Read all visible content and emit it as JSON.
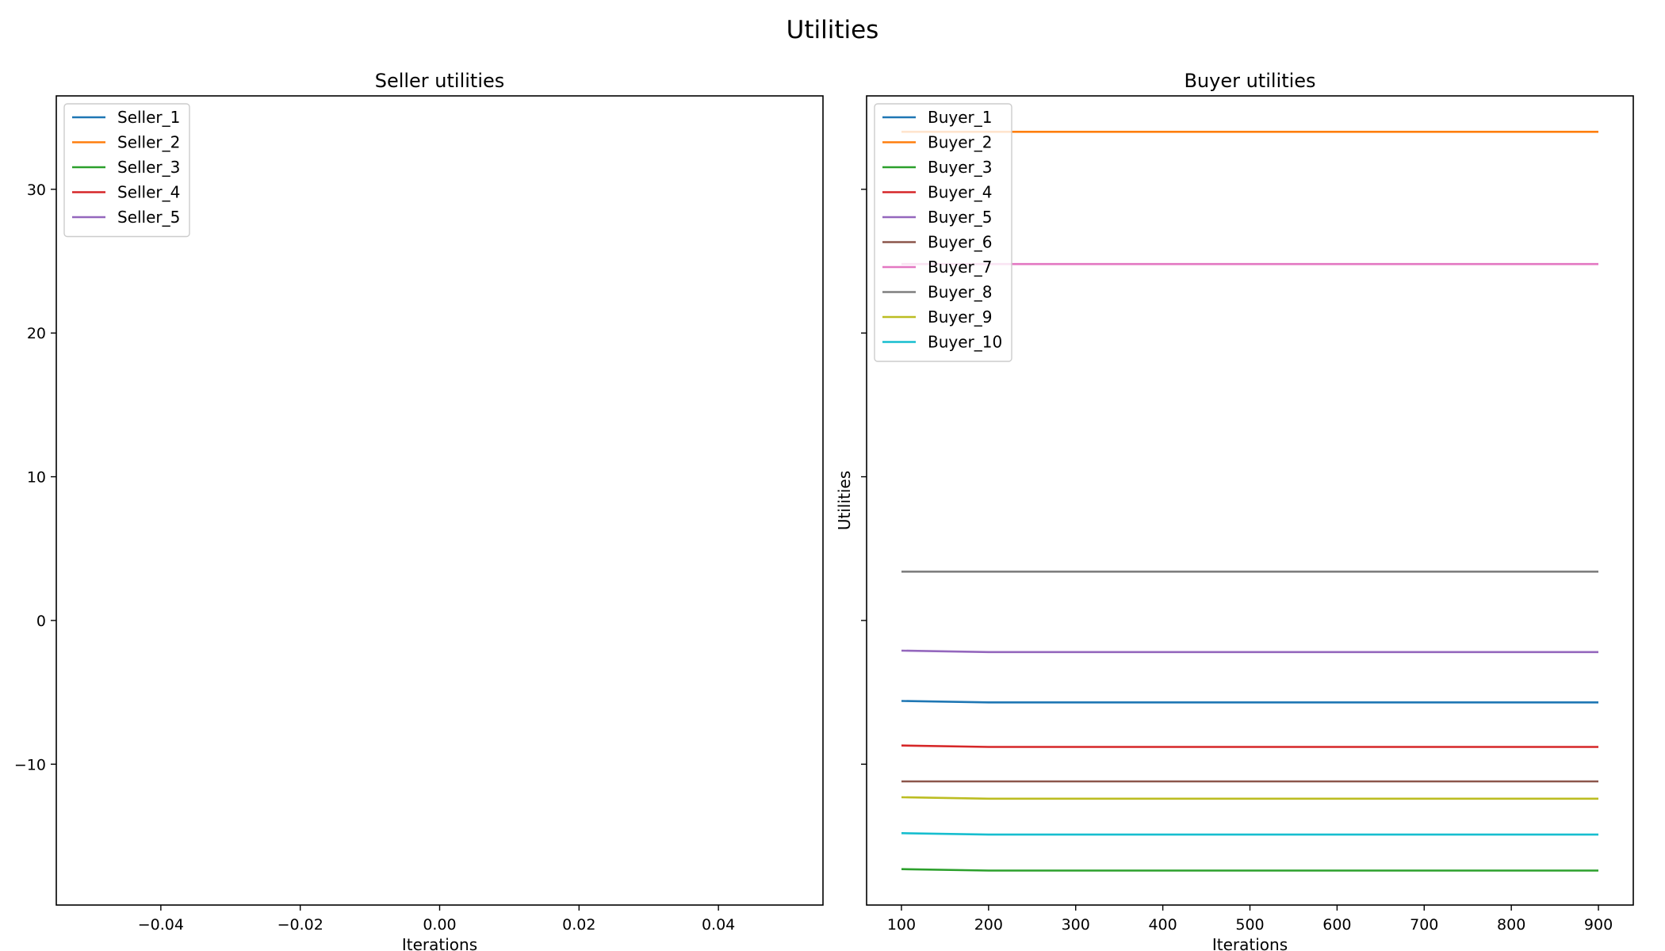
{
  "figure": {
    "title": "Utilities"
  },
  "chart_data": [
    {
      "type": "line",
      "title": "Seller utilities",
      "xlabel": "Iterations",
      "ylabel": "",
      "xlim": [
        -0.055,
        0.055
      ],
      "ylim": [
        -19.8,
        36.5
      ],
      "xticks": [
        -0.04,
        -0.02,
        0.0,
        0.02,
        0.04
      ],
      "xtick_labels": [
        "−0.04",
        "−0.02",
        "0.00",
        "0.02",
        "0.04"
      ],
      "yticks": [
        -10,
        0,
        10,
        20,
        30
      ],
      "ytick_labels": [
        "−10",
        "0",
        "10",
        "20",
        "30"
      ],
      "legend_position": "upper-left",
      "series": [
        {
          "name": "Seller_1",
          "color": "#1f77b4",
          "x": [],
          "values": []
        },
        {
          "name": "Seller_2",
          "color": "#ff7f0e",
          "x": [],
          "values": []
        },
        {
          "name": "Seller_3",
          "color": "#2ca02c",
          "x": [],
          "values": []
        },
        {
          "name": "Seller_4",
          "color": "#d62728",
          "x": [],
          "values": []
        },
        {
          "name": "Seller_5",
          "color": "#9467bd",
          "x": [],
          "values": []
        }
      ]
    },
    {
      "type": "line",
      "title": "Buyer utilities",
      "xlabel": "Iterations",
      "ylabel": "Utilities",
      "xlim": [
        60,
        940
      ],
      "ylim": [
        -19.8,
        36.5
      ],
      "xticks": [
        100,
        200,
        300,
        400,
        500,
        600,
        700,
        800,
        900
      ],
      "xtick_labels": [
        "100",
        "200",
        "300",
        "400",
        "500",
        "600",
        "700",
        "800",
        "900"
      ],
      "yticks": [
        -10,
        0,
        10,
        20,
        30
      ],
      "ytick_labels": [],
      "legend_position": "upper-left",
      "x": [
        100,
        200,
        300,
        400,
        500,
        600,
        700,
        800,
        900
      ],
      "series": [
        {
          "name": "Buyer_1",
          "color": "#1f77b4",
          "values": [
            -5.6,
            -5.7,
            -5.7,
            -5.7,
            -5.7,
            -5.7,
            -5.7,
            -5.7,
            -5.7
          ]
        },
        {
          "name": "Buyer_2",
          "color": "#ff7f0e",
          "values": [
            34.0,
            34.0,
            34.0,
            34.0,
            34.0,
            34.0,
            34.0,
            34.0,
            34.0
          ]
        },
        {
          "name": "Buyer_3",
          "color": "#2ca02c",
          "values": [
            -17.3,
            -17.4,
            -17.4,
            -17.4,
            -17.4,
            -17.4,
            -17.4,
            -17.4,
            -17.4
          ]
        },
        {
          "name": "Buyer_4",
          "color": "#d62728",
          "values": [
            -8.7,
            -8.8,
            -8.8,
            -8.8,
            -8.8,
            -8.8,
            -8.8,
            -8.8,
            -8.8
          ]
        },
        {
          "name": "Buyer_5",
          "color": "#9467bd",
          "values": [
            -2.1,
            -2.2,
            -2.2,
            -2.2,
            -2.2,
            -2.2,
            -2.2,
            -2.2,
            -2.2
          ]
        },
        {
          "name": "Buyer_6",
          "color": "#8c564b",
          "values": [
            -11.2,
            -11.2,
            -11.2,
            -11.2,
            -11.2,
            -11.2,
            -11.2,
            -11.2,
            -11.2
          ]
        },
        {
          "name": "Buyer_7",
          "color": "#e377c2",
          "values": [
            24.8,
            24.8,
            24.8,
            24.8,
            24.8,
            24.8,
            24.8,
            24.8,
            24.8
          ]
        },
        {
          "name": "Buyer_8",
          "color": "#7f7f7f",
          "values": [
            3.4,
            3.4,
            3.4,
            3.4,
            3.4,
            3.4,
            3.4,
            3.4,
            3.4
          ]
        },
        {
          "name": "Buyer_9",
          "color": "#bcbd22",
          "values": [
            -12.3,
            -12.4,
            -12.4,
            -12.4,
            -12.4,
            -12.4,
            -12.4,
            -12.4,
            -12.4
          ]
        },
        {
          "name": "Buyer_10",
          "color": "#17becf",
          "values": [
            -14.8,
            -14.9,
            -14.9,
            -14.9,
            -14.9,
            -14.9,
            -14.9,
            -14.9,
            -14.9
          ]
        }
      ]
    }
  ]
}
